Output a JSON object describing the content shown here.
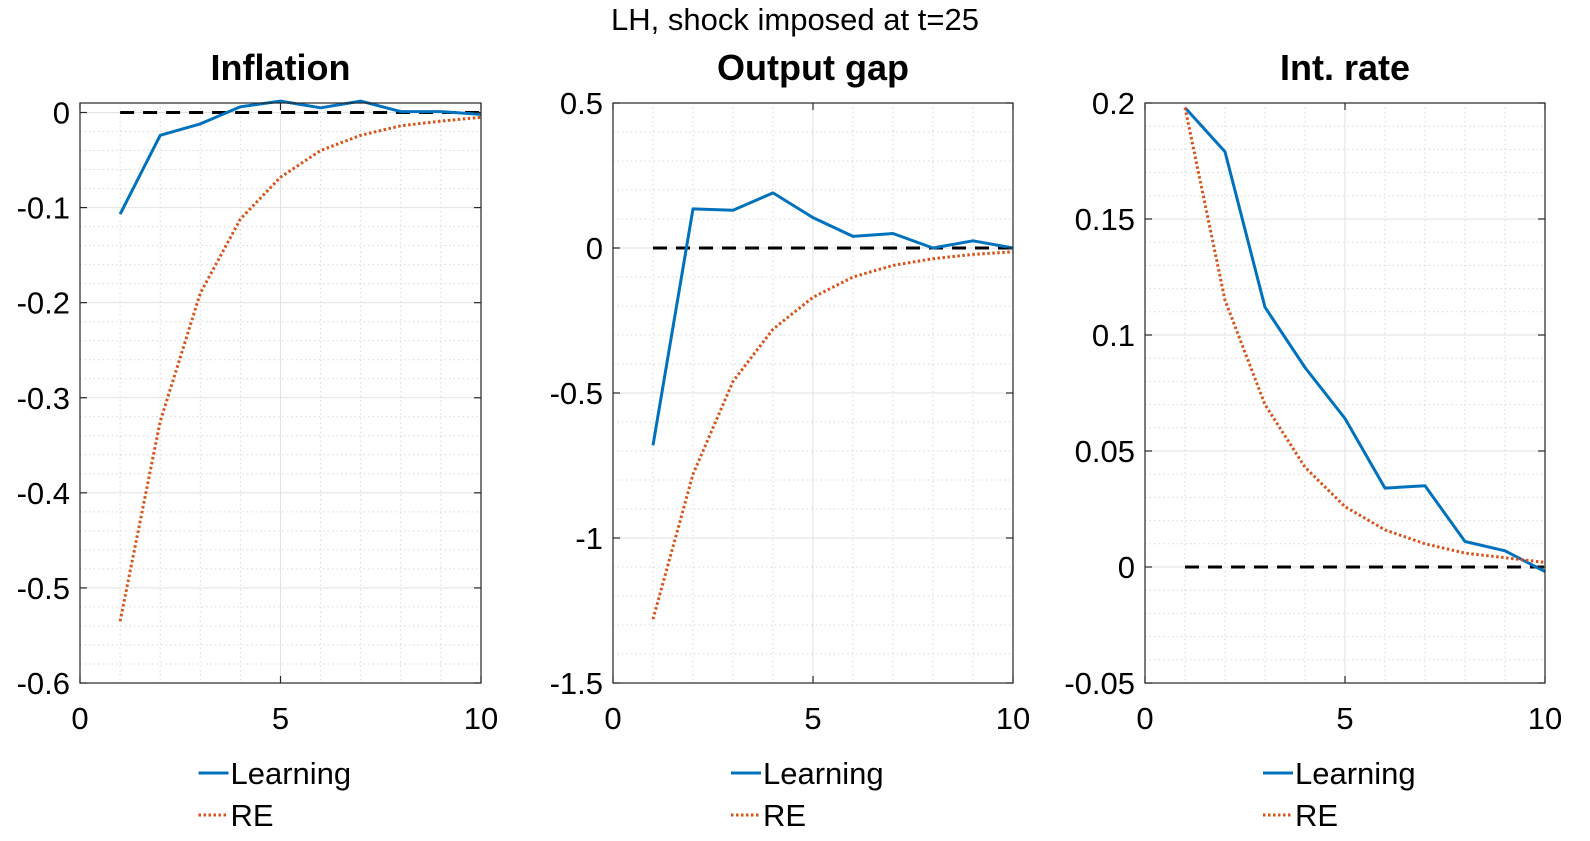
{
  "figure_title": "LH, shock imposed at t=25",
  "chart_data": [
    {
      "type": "line",
      "title": "Inflation",
      "x": [
        1,
        2,
        3,
        4,
        5,
        6,
        7,
        8,
        9,
        10
      ],
      "xlim": [
        0,
        10
      ],
      "xticks": [
        0,
        5,
        10
      ],
      "xtick_labels": [
        "0",
        "5",
        "10"
      ],
      "ylim": [
        -0.6,
        0.01
      ],
      "yticks": [
        0,
        -0.1,
        -0.2,
        -0.3,
        -0.4,
        -0.5,
        -0.6
      ],
      "ytick_labels": [
        "0",
        "-0.1",
        "-0.2",
        "-0.3",
        "-0.4",
        "-0.5",
        "-0.6"
      ],
      "grid": true,
      "minor_grid": true,
      "zero_line": 0,
      "series": [
        {
          "name": "Learning",
          "color": "#0072BD",
          "style": "solid",
          "values": [
            -0.107,
            -0.024,
            -0.012,
            0.006,
            0.012,
            0.005,
            0.012,
            0.001,
            0.001,
            -0.002
          ]
        },
        {
          "name": "RE",
          "color": "#D95319",
          "style": "dotted",
          "values": [
            -0.535,
            -0.325,
            -0.19,
            -0.112,
            -0.068,
            -0.04,
            -0.024,
            -0.014,
            -0.009,
            -0.005
          ]
        }
      ],
      "legend": {
        "position": "bottom",
        "entries": [
          "Learning",
          "RE"
        ]
      }
    },
    {
      "type": "line",
      "title": "Output gap",
      "x": [
        1,
        2,
        3,
        4,
        5,
        6,
        7,
        8,
        9,
        10
      ],
      "xlim": [
        0,
        10
      ],
      "xticks": [
        0,
        5,
        10
      ],
      "xtick_labels": [
        "0",
        "5",
        "10"
      ],
      "ylim": [
        -1.5,
        0.5
      ],
      "yticks": [
        0.5,
        0,
        -0.5,
        -1,
        -1.5
      ],
      "ytick_labels": [
        "0.5",
        "0",
        "-0.5",
        "-1",
        "-1.5"
      ],
      "grid": true,
      "minor_grid": true,
      "zero_line": 0,
      "series": [
        {
          "name": "Learning",
          "color": "#0072BD",
          "style": "solid",
          "values": [
            -0.68,
            0.135,
            0.13,
            0.19,
            0.105,
            0.04,
            0.05,
            0.0,
            0.025,
            0.0
          ]
        },
        {
          "name": "RE",
          "color": "#D95319",
          "style": "dotted",
          "values": [
            -1.28,
            -0.78,
            -0.46,
            -0.28,
            -0.17,
            -0.1,
            -0.06,
            -0.037,
            -0.022,
            -0.013
          ]
        }
      ],
      "legend": {
        "position": "bottom",
        "entries": [
          "Learning",
          "RE"
        ]
      }
    },
    {
      "type": "line",
      "title": "Int. rate",
      "x": [
        1,
        2,
        3,
        4,
        5,
        6,
        7,
        8,
        9,
        10
      ],
      "xlim": [
        0,
        10
      ],
      "xticks": [
        0,
        5,
        10
      ],
      "xtick_labels": [
        "0",
        "5",
        "10"
      ],
      "ylim": [
        -0.05,
        0.2
      ],
      "yticks": [
        0.2,
        0.15,
        0.1,
        0.05,
        0,
        -0.05
      ],
      "ytick_labels": [
        "0.2",
        "0.15",
        "0.1",
        "0.05",
        "0",
        "-0.05"
      ],
      "grid": true,
      "minor_grid": true,
      "zero_line": 0,
      "series": [
        {
          "name": "Learning",
          "color": "#0072BD",
          "style": "solid",
          "values": [
            0.198,
            0.179,
            0.112,
            0.086,
            0.064,
            0.034,
            0.035,
            0.011,
            0.007,
            -0.002
          ]
        },
        {
          "name": "RE",
          "color": "#D95319",
          "style": "dotted",
          "values": [
            0.198,
            0.115,
            0.07,
            0.043,
            0.026,
            0.016,
            0.01,
            0.006,
            0.004,
            0.002
          ]
        }
      ],
      "legend": {
        "position": "bottom",
        "entries": [
          "Learning",
          "RE"
        ]
      }
    }
  ]
}
